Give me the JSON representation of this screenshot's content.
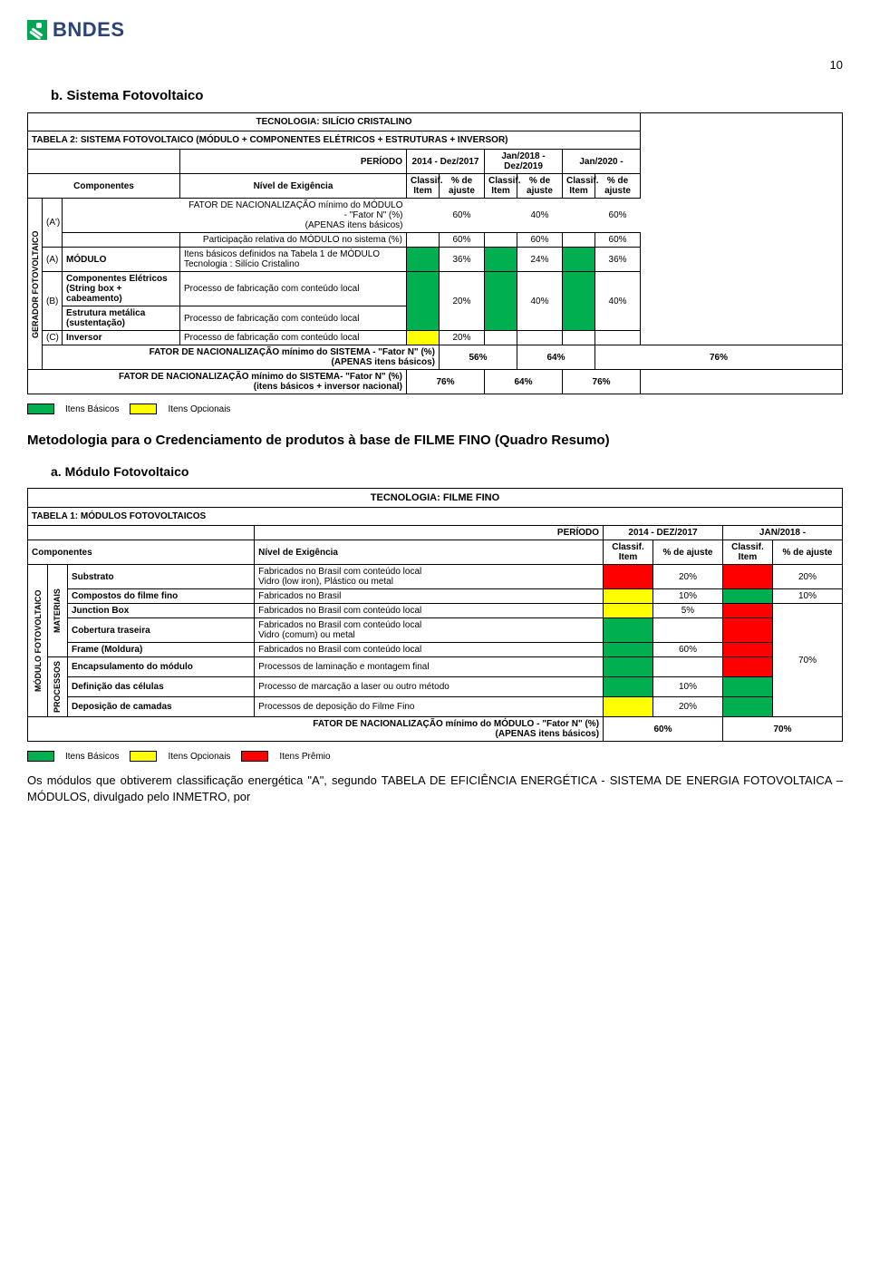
{
  "page_number": "10",
  "logo_text": "BNDES",
  "colors": {
    "green": "#00b050",
    "yellow": "#ffff00",
    "red": "#ff0000"
  },
  "section_b": {
    "title": "b. Sistema Fotovoltaico",
    "tech_title": "TECNOLOGIA: SILÍCIO CRISTALINO",
    "table_title": "TABELA 2: SISTEMA FOTOVOLTAICO (MÓDULO + COMPONENTES ELÉTRICOS + ESTRUTURAS + INVERSOR)",
    "periodo_label": "PERÍODO",
    "periods": [
      "2014 - Dez/2017",
      "Jan/2018 - Dez/2019",
      "Jan/2020 -"
    ],
    "col_componentes": "Componentes",
    "col_nivel": "Nível de Exigência",
    "col_classif": "Classif. Item",
    "col_ajuste": "% de ajuste",
    "side_label": "GERADOR FOTOVOLTAICO",
    "row_a_code": "(A')",
    "row_a_l1": "FATOR DE NACIONALIZAÇÃO mínimo do MÓDULO - \"Fator N\" (%)\n(APENAS itens básicos)",
    "row_a_v": [
      "60%",
      "40%",
      "60%"
    ],
    "row_a_l2": "Participação relativa do MÓDULO no sistema (%)",
    "row_a_v2": [
      "60%",
      "60%",
      "60%"
    ],
    "row_A_code": "(A)",
    "row_A_name": "MÓDULO",
    "row_A_nivel": "Itens básicos definidos na Tabela 1 de MÓDULO\nTecnologia : Silício Cristalino",
    "row_A_v": [
      "36%",
      "24%",
      "36%"
    ],
    "row_B_code": "(B)",
    "row_B_name1": "Componentes Elétricos (String box + cabeamento)",
    "row_B_nivel1": "Processo de fabricação com conteúdo local",
    "row_B_shared": "20%",
    "row_B_name2": "Estrutura metálica (sustentação)",
    "row_B_nivel2": "Processo de fabricação com conteúdo local",
    "row_B_v2": [
      "40%",
      "40%"
    ],
    "row_C_code": "(C)",
    "row_C_name": "Inversor",
    "row_C_nivel": "Processo de fabricação com conteúdo local",
    "row_C_v": "20%",
    "fator1_label": "FATOR DE NACIONALIZAÇÃO mínimo do SISTEMA - \"Fator N\" (%)\n(APENAS itens básicos)",
    "fator1_v": [
      "56%",
      "64%",
      "76%"
    ],
    "fator2_label": "FATOR DE NACIONALIZAÇÃO mínimo do SISTEMA- \"Fator N\" (%)\n(itens básicos + inversor nacional)",
    "fator2_v": [
      "76%",
      "64%",
      "76%"
    ]
  },
  "legend1": {
    "basicos": "Itens Básicos",
    "opcionais": "Itens Opcionais"
  },
  "metodologia_title": "Metodologia para o Credenciamento de produtos à base de FILME FINO (Quadro Resumo)",
  "section_a2": {
    "title": "a. Módulo Fotovoltaico",
    "tech_title": "TECNOLOGIA: FILME FINO",
    "table_title": "TABELA 1: MÓDULOS FOTOVOLTAICOS",
    "periodo_label": "PERÍODO",
    "periods": [
      "2014 - DEZ/2017",
      "JAN/2018 -"
    ],
    "col_componentes": "Componentes",
    "col_nivel": "Nível de Exigência",
    "col_classif": "Classif. Item",
    "col_ajuste": "% de ajuste",
    "side_label": "MÓDULO FOTOVOLTAICO",
    "side_mat": "MATERIAIS",
    "side_proc": "PROCESSOS",
    "rows": [
      {
        "name": "Substrato",
        "nivel": "Fabricados no Brasil com conteúdo local\nVidro (low iron), Plástico ou metal",
        "c1": "#ff0000",
        "v1": "20%",
        "c2": "#ff0000",
        "v2": "20%"
      },
      {
        "name": "Compostos do filme fino",
        "nivel": "Fabricados no Brasil",
        "c1": "#ffff00",
        "v1": "10%",
        "c2": "#00b050",
        "v2": "10%"
      },
      {
        "name": "Junction Box",
        "nivel": "Fabricados no Brasil com conteúdo local",
        "c1": "#ffff00",
        "v1": "5%",
        "c2": "#ff0000",
        "v2": ""
      },
      {
        "name": "Cobertura traseira",
        "nivel": "Fabricados no Brasil com conteúdo local\nVidro (comum) ou metal",
        "c1": "#00b050",
        "v1": "",
        "c2": "#ff0000",
        "v2": ""
      },
      {
        "name": "Frame (Moldura)",
        "nivel": "Fabricados no Brasil com conteúdo local",
        "c1": "#00b050",
        "v1": "60%",
        "c2": "#ff0000",
        "v2": ""
      },
      {
        "name": "Encapsulamento do módulo",
        "nivel": "Processos de laminação e montagem final",
        "c1": "#00b050",
        "v1": "",
        "c2": "#ff0000",
        "v2": ""
      },
      {
        "name": "Definição das células",
        "nivel": "Processo de marcação a laser ou outro método",
        "c1": "#00b050",
        "v1": "10%",
        "c2": "#00b050",
        "v2": ""
      },
      {
        "name": "Deposição de camadas",
        "nivel": "Processos de deposição do Filme Fino",
        "c1": "#ffff00",
        "v1": "20%",
        "c2": "#00b050",
        "v2": ""
      }
    ],
    "v2_span": "70%",
    "fator_label": "FATOR DE NACIONALIZAÇÃO mínimo do MÓDULO - \"Fator N\" (%)\n(APENAS itens básicos)",
    "fator_v": [
      "60%",
      "70%"
    ]
  },
  "legend2": {
    "basicos": "Itens Básicos",
    "opcionais": "Itens Opcionais",
    "premio": "Itens Prêmio"
  },
  "body_text": "Os módulos que obtiverem classificação energética \"A\", segundo TABELA DE EFICIÊNCIA ENERGÉTICA - SISTEMA DE ENERGIA FOTOVOLTAICA – MÓDULOS, divulgado pelo INMETRO, por"
}
